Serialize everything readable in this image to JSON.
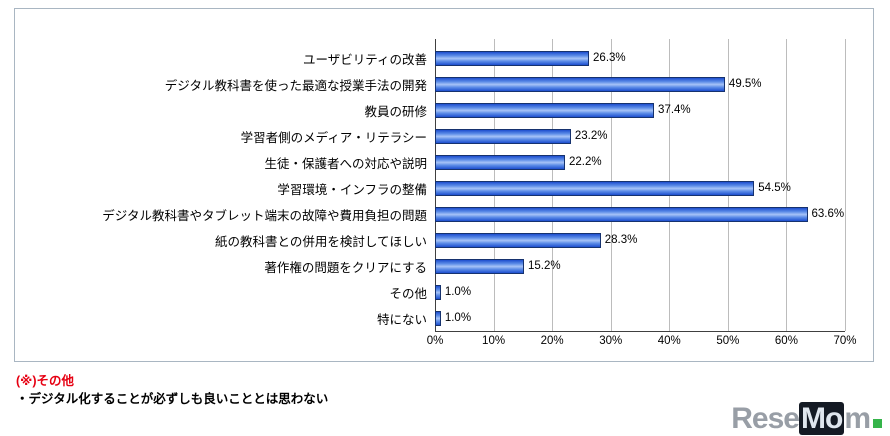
{
  "chart_data": {
    "type": "bar",
    "orientation": "horizontal",
    "title": "",
    "xlabel": "",
    "ylabel": "",
    "xlim": [
      0,
      70
    ],
    "grid": true,
    "bar_color": "#2a5bd7",
    "categories": [
      "ユーザビリティの改善",
      "デジタル教科書を使った最適な授業手法の開発",
      "教員の研修",
      "学習者側のメディア・リテラシー",
      "生徒・保護者への対応や説明",
      "学習環境・インフラの整備",
      "デジタル教科書やタブレット端末の故障や費用負担の問題",
      "紙の教科書との併用を検討してほしい",
      "著作権の問題をクリアにする",
      "その他",
      "特にない"
    ],
    "values": [
      26.3,
      49.5,
      37.4,
      23.2,
      22.2,
      54.5,
      63.6,
      28.3,
      15.2,
      1.0,
      1.0
    ],
    "value_labels": [
      "26.3%",
      "49.5%",
      "37.4%",
      "23.2%",
      "22.2%",
      "54.5%",
      "63.6%",
      "28.3%",
      "15.2%",
      "1.0%",
      "1.0%"
    ],
    "xticks": [
      "0%",
      "10%",
      "20%",
      "30%",
      "40%",
      "50%",
      "60%",
      "70%"
    ]
  },
  "footnote": {
    "title": "(※)その他",
    "line": "・デジタル化することが必ずしも良いこととは思わない"
  },
  "watermark": {
    "rese": "Rese",
    "mid": "Mo",
    "tail": "m"
  }
}
